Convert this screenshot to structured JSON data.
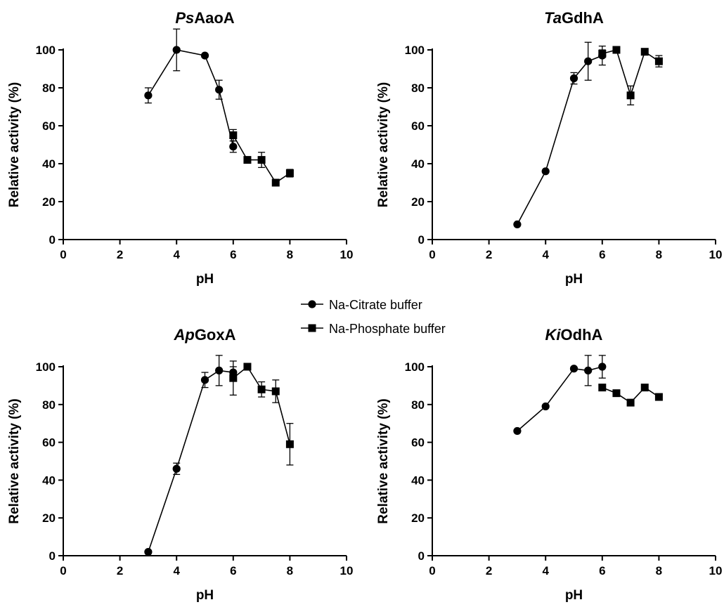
{
  "legend": {
    "entries": [
      {
        "label": "Na-Citrate buffer",
        "marker": "circle"
      },
      {
        "label": "Na-Phosphate buffer",
        "marker": "square"
      }
    ]
  },
  "chart_data": [
    {
      "type": "line",
      "title_italic": "Ps",
      "title_rest": "AaoA",
      "xlabel": "pH",
      "ylabel": "Relative activity (%)",
      "xlim": [
        0,
        10
      ],
      "ylim": [
        0,
        100
      ],
      "xticks": [
        0,
        2,
        4,
        6,
        8,
        10
      ],
      "yticks": [
        0,
        20,
        40,
        60,
        80,
        100
      ],
      "series": [
        {
          "name": "Na-Citrate buffer",
          "marker": "circle",
          "x": [
            3,
            4,
            5,
            5.5,
            6
          ],
          "y": [
            76,
            100,
            97,
            79,
            49
          ],
          "err": [
            4,
            11,
            0,
            5,
            3
          ]
        },
        {
          "name": "Na-Phosphate buffer",
          "marker": "square",
          "x": [
            6,
            6.5,
            7,
            7.5,
            8
          ],
          "y": [
            55,
            42,
            42,
            30,
            35
          ],
          "err": [
            3,
            0,
            4,
            0,
            2
          ]
        }
      ]
    },
    {
      "type": "line",
      "title_italic": "Ta",
      "title_rest": "GdhA",
      "xlabel": "pH",
      "ylabel": "Relative activity (%)",
      "xlim": [
        0,
        10
      ],
      "ylim": [
        0,
        100
      ],
      "xticks": [
        0,
        2,
        4,
        6,
        8,
        10
      ],
      "yticks": [
        0,
        20,
        40,
        60,
        80,
        100
      ],
      "series": [
        {
          "name": "Na-Citrate buffer",
          "marker": "circle",
          "x": [
            3,
            4,
            5,
            5.5,
            6
          ],
          "y": [
            8,
            36,
            85,
            94,
            97
          ],
          "err": [
            0,
            0,
            3,
            10,
            5
          ]
        },
        {
          "name": "Na-Phosphate buffer",
          "marker": "square",
          "x": [
            6,
            6.5,
            7,
            7.5,
            8
          ],
          "y": [
            98,
            100,
            76,
            99,
            94
          ],
          "err": [
            2,
            0,
            5,
            0,
            3
          ]
        }
      ]
    },
    {
      "type": "line",
      "title_italic": "Ap",
      "title_rest": "GoxA",
      "xlabel": "pH",
      "ylabel": "Relative activity (%)",
      "xlim": [
        0,
        10
      ],
      "ylim": [
        0,
        100
      ],
      "xticks": [
        0,
        2,
        4,
        6,
        8,
        10
      ],
      "yticks": [
        0,
        20,
        40,
        60,
        80,
        100
      ],
      "series": [
        {
          "name": "Na-Citrate buffer",
          "marker": "circle",
          "x": [
            3,
            4,
            5,
            5.5,
            6
          ],
          "y": [
            2,
            46,
            93,
            98,
            97
          ],
          "err": [
            0,
            3,
            4,
            8,
            3
          ]
        },
        {
          "name": "Na-Phosphate buffer",
          "marker": "square",
          "x": [
            6,
            6.5,
            7,
            7.5,
            8
          ],
          "y": [
            94,
            100,
            88,
            87,
            59
          ],
          "err": [
            9,
            0,
            4,
            6,
            11
          ]
        }
      ]
    },
    {
      "type": "line",
      "title_italic": "Ki",
      "title_rest": "OdhA",
      "xlabel": "pH",
      "ylabel": "Relative activity (%)",
      "xlim": [
        0,
        10
      ],
      "ylim": [
        0,
        100
      ],
      "xticks": [
        0,
        2,
        4,
        6,
        8,
        10
      ],
      "yticks": [
        0,
        20,
        40,
        60,
        80,
        100
      ],
      "series": [
        {
          "name": "Na-Citrate buffer",
          "marker": "circle",
          "x": [
            3,
            4,
            5,
            5.5,
            6
          ],
          "y": [
            66,
            79,
            99,
            98,
            100
          ],
          "err": [
            0,
            0,
            0,
            8,
            6
          ]
        },
        {
          "name": "Na-Phosphate buffer",
          "marker": "square",
          "x": [
            6,
            6.5,
            7,
            7.5,
            8
          ],
          "y": [
            89,
            86,
            81,
            89,
            84
          ],
          "err": [
            0,
            0,
            0,
            0,
            0
          ]
        }
      ]
    }
  ]
}
